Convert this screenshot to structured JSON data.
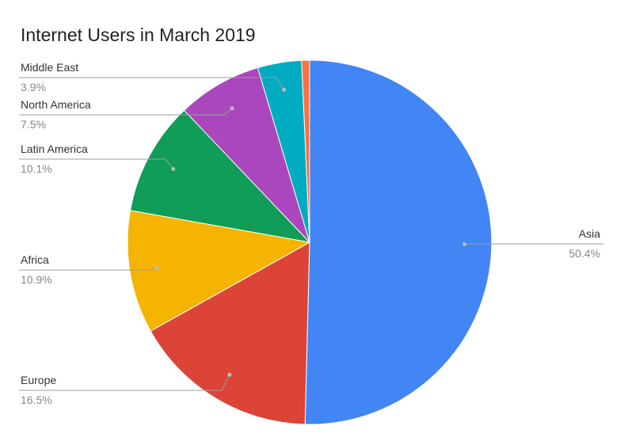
{
  "chart_data": {
    "type": "pie",
    "title": "Internet Users in March 2019",
    "slices": [
      {
        "label": "Asia",
        "value_label": "50.4%",
        "value": 50.4,
        "color": "#4285F4"
      },
      {
        "label": "Europe",
        "value_label": "16.5%",
        "value": 16.5,
        "color": "#DB4437"
      },
      {
        "label": "Africa",
        "value_label": "10.9%",
        "value": 10.9,
        "color": "#F4B400"
      },
      {
        "label": "Latin America",
        "value_label": "10.1%",
        "value": 10.1,
        "color": "#0F9D58"
      },
      {
        "label": "North America",
        "value_label": "7.5%",
        "value": 7.5,
        "color": "#AB47BC"
      },
      {
        "label": "Middle East",
        "value_label": "3.9%",
        "value": 3.9,
        "color": "#00ACC1"
      },
      {
        "label": "",
        "value_label": "",
        "value": 0.7,
        "color": "#FF7043"
      }
    ],
    "legend": "none"
  }
}
